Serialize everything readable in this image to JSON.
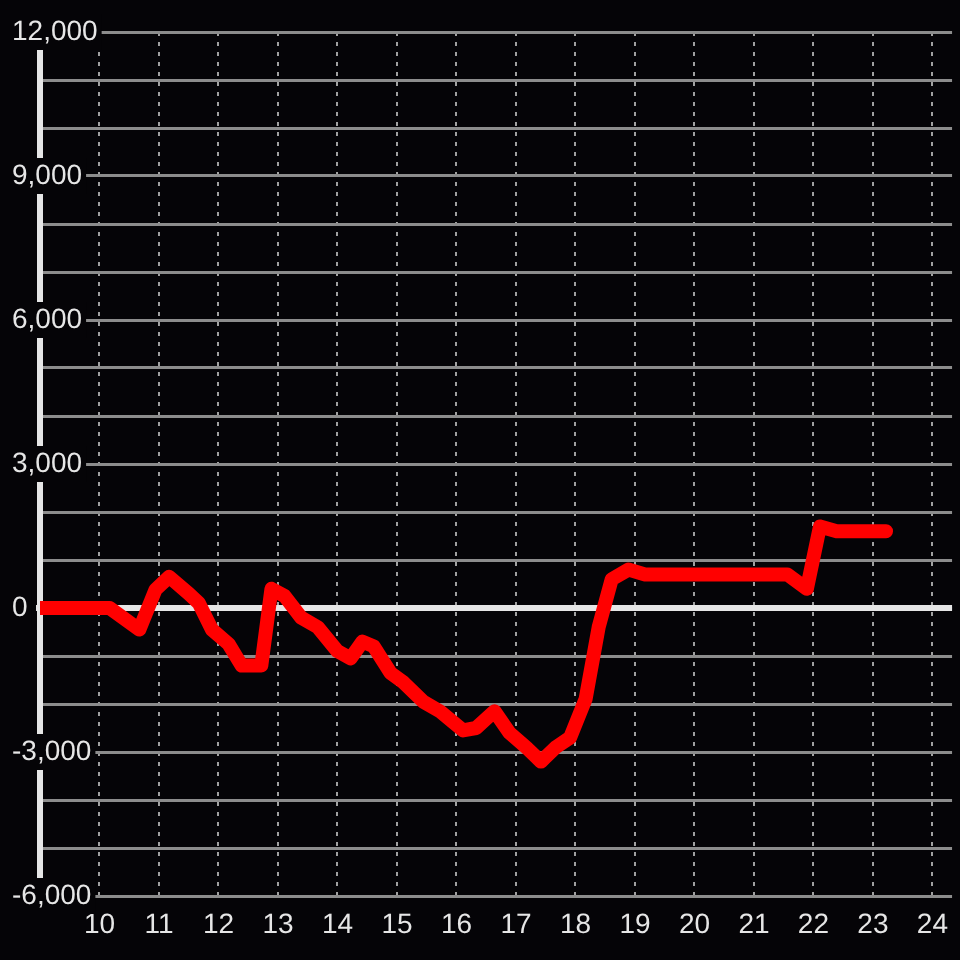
{
  "chart_data": {
    "type": "line",
    "x": [
      9,
      10.17,
      10.67,
      10.94,
      11.17,
      11.5,
      11.67,
      11.89,
      12.17,
      12.39,
      12.72,
      12.89,
      13.11,
      13.39,
      13.67,
      14.0,
      14.22,
      14.42,
      14.61,
      14.89,
      15.11,
      15.44,
      15.72,
      16.11,
      16.33,
      16.64,
      16.89,
      17.17,
      17.42,
      17.67,
      17.91,
      18.17,
      18.39,
      18.61,
      18.89,
      19.17,
      21.56,
      21.89,
      22.11,
      22.39,
      23.22
    ],
    "series": [
      {
        "color": "#ff0000",
        "values": [
          0,
          0,
          -450,
          380,
          650,
          300,
          100,
          -450,
          -750,
          -1200,
          -1200,
          400,
          250,
          -200,
          -400,
          -900,
          -1050,
          -700,
          -800,
          -1350,
          -1550,
          -1950,
          -2150,
          -2550,
          -2500,
          -2150,
          -2600,
          -2900,
          -3200,
          -2900,
          -2700,
          -1900,
          -400,
          600,
          800,
          700,
          700,
          400,
          1700,
          1600,
          1600
        ]
      }
    ],
    "xlim": [
      9,
      24.33
    ],
    "xticks": [
      10,
      11,
      12,
      13,
      14,
      15,
      16,
      17,
      18,
      19,
      20,
      21,
      22,
      23,
      24
    ],
    "ylim": [
      -6000,
      12000
    ],
    "yticks": [
      {
        "value": -6000,
        "label": "-6,000"
      },
      {
        "value": -5000,
        "label": null
      },
      {
        "value": -4000,
        "label": null
      },
      {
        "value": -3000,
        "label": "-3,000"
      },
      {
        "value": -2000,
        "label": null
      },
      {
        "value": -1000,
        "label": null
      },
      0,
      {
        "value": 1000,
        "label": null
      },
      {
        "value": 2000,
        "label": null
      },
      {
        "value": 3000,
        "label": "3,000"
      },
      {
        "value": 4000,
        "label": null
      },
      {
        "value": 5000,
        "label": null
      },
      {
        "value": 6000,
        "label": "6,000"
      },
      {
        "value": 7000,
        "label": null
      },
      {
        "value": 8000,
        "label": null
      },
      {
        "value": 9000,
        "label": "9,000"
      },
      {
        "value": 10000,
        "label": null
      },
      {
        "value": 11000,
        "label": null
      },
      {
        "value": 12000,
        "label": "12,000"
      }
    ],
    "ref_lines": [
      {
        "axis": "y",
        "value": 0,
        "color": "#e6e6e6"
      }
    ],
    "grid": true,
    "marker": "none",
    "line_style": "solid"
  }
}
